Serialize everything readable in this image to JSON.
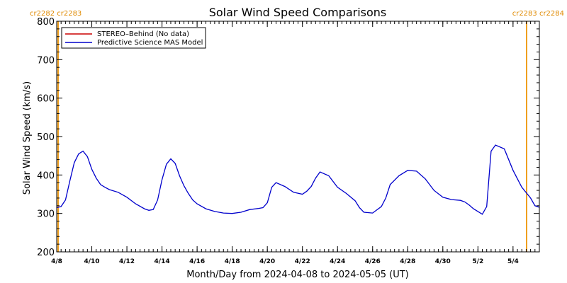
{
  "chart_data": {
    "type": "line",
    "title": "Solar Wind Speed Comparisons",
    "xlabel": "Month/Day from 2024-04-08 to 2024-05-05 (UT)",
    "ylabel": "Solar Wind Speed (km/s)",
    "ylim": [
      200,
      800
    ],
    "yticks": [
      200,
      300,
      400,
      500,
      600,
      700,
      800
    ],
    "xlim": [
      "2024-04-08",
      "2024-05-05"
    ],
    "xtick_labels": [
      "4/8",
      "4/10",
      "4/12",
      "4/14",
      "4/16",
      "4/18",
      "4/20",
      "4/22",
      "4/24",
      "4/26",
      "4/28",
      "4/30",
      "5/2",
      "5/4"
    ],
    "xtick_dates": [
      "2024-04-08",
      "2024-04-10",
      "2024-04-12",
      "2024-04-14",
      "2024-04-16",
      "2024-04-18",
      "2024-04-20",
      "2024-04-22",
      "2024-04-24",
      "2024-04-26",
      "2024-04-28",
      "2024-04-30",
      "2024-05-02",
      "2024-05-04"
    ],
    "legend_position": "top-left",
    "grid": false,
    "series": [
      {
        "name": "STEREO–Behind (No data)",
        "color": "#cc0000",
        "x": [],
        "y": []
      },
      {
        "name": "Predictive Science MAS Model",
        "color": "#0000cc",
        "x": [
          "2024-04-08 00:00",
          "2024-04-08 06:00",
          "2024-04-08 12:00",
          "2024-04-08 18:00",
          "2024-04-09 00:00",
          "2024-04-09 06:00",
          "2024-04-09 12:00",
          "2024-04-09 18:00",
          "2024-04-10 00:00",
          "2024-04-10 06:00",
          "2024-04-10 12:00",
          "2024-04-10 18:00",
          "2024-04-11 00:00",
          "2024-04-11 12:00",
          "2024-04-12 00:00",
          "2024-04-12 12:00",
          "2024-04-13 00:00",
          "2024-04-13 06:00",
          "2024-04-13 12:00",
          "2024-04-13 18:00",
          "2024-04-14 00:00",
          "2024-04-14 06:00",
          "2024-04-14 12:00",
          "2024-04-14 18:00",
          "2024-04-15 00:00",
          "2024-04-15 06:00",
          "2024-04-15 12:00",
          "2024-04-15 18:00",
          "2024-04-16 00:00",
          "2024-04-16 12:00",
          "2024-04-17 00:00",
          "2024-04-17 12:00",
          "2024-04-18 00:00",
          "2024-04-18 12:00",
          "2024-04-19 00:00",
          "2024-04-19 12:00",
          "2024-04-19 18:00",
          "2024-04-20 00:00",
          "2024-04-20 06:00",
          "2024-04-20 12:00",
          "2024-04-21 00:00",
          "2024-04-21 12:00",
          "2024-04-22 00:00",
          "2024-04-22 06:00",
          "2024-04-22 12:00",
          "2024-04-22 18:00",
          "2024-04-23 00:00",
          "2024-04-23 12:00",
          "2024-04-24 00:00",
          "2024-04-24 12:00",
          "2024-04-25 00:00",
          "2024-04-25 06:00",
          "2024-04-25 12:00",
          "2024-04-26 00:00",
          "2024-04-26 12:00",
          "2024-04-26 18:00",
          "2024-04-27 00:00",
          "2024-04-27 12:00",
          "2024-04-28 00:00",
          "2024-04-28 12:00",
          "2024-04-29 00:00",
          "2024-04-29 12:00",
          "2024-04-30 00:00",
          "2024-04-30 12:00",
          "2024-05-01 00:00",
          "2024-05-01 06:00",
          "2024-05-01 12:00",
          "2024-05-01 18:00",
          "2024-05-02 00:00",
          "2024-05-02 06:00",
          "2024-05-02 12:00",
          "2024-05-02 18:00",
          "2024-05-03 00:00",
          "2024-05-03 12:00",
          "2024-05-04 00:00",
          "2024-05-04 12:00",
          "2024-05-05 00:00",
          "2024-05-05 06:00",
          "2024-05-05 12:00"
        ],
        "y": [
          315,
          318,
          335,
          385,
          432,
          455,
          462,
          448,
          415,
          392,
          375,
          368,
          362,
          355,
          342,
          325,
          312,
          308,
          310,
          335,
          388,
          428,
          442,
          430,
          398,
          372,
          352,
          335,
          325,
          312,
          305,
          301,
          300,
          303,
          310,
          313,
          315,
          328,
          368,
          380,
          370,
          355,
          350,
          358,
          370,
          392,
          408,
          398,
          368,
          352,
          333,
          315,
          303,
          301,
          318,
          340,
          375,
          398,
          412,
          410,
          390,
          360,
          342,
          336,
          334,
          330,
          322,
          312,
          305,
          298,
          318,
          462,
          478,
          468,
          412,
          368,
          340,
          320,
          316
        ]
      }
    ],
    "annotations": [
      {
        "text": "cr2282 cr2283",
        "position": "top-left"
      },
      {
        "text": "cr2283 cr2284",
        "position": "top-right"
      }
    ],
    "rotation_markers": [
      "2024-04-08",
      "2024-05-05"
    ]
  }
}
